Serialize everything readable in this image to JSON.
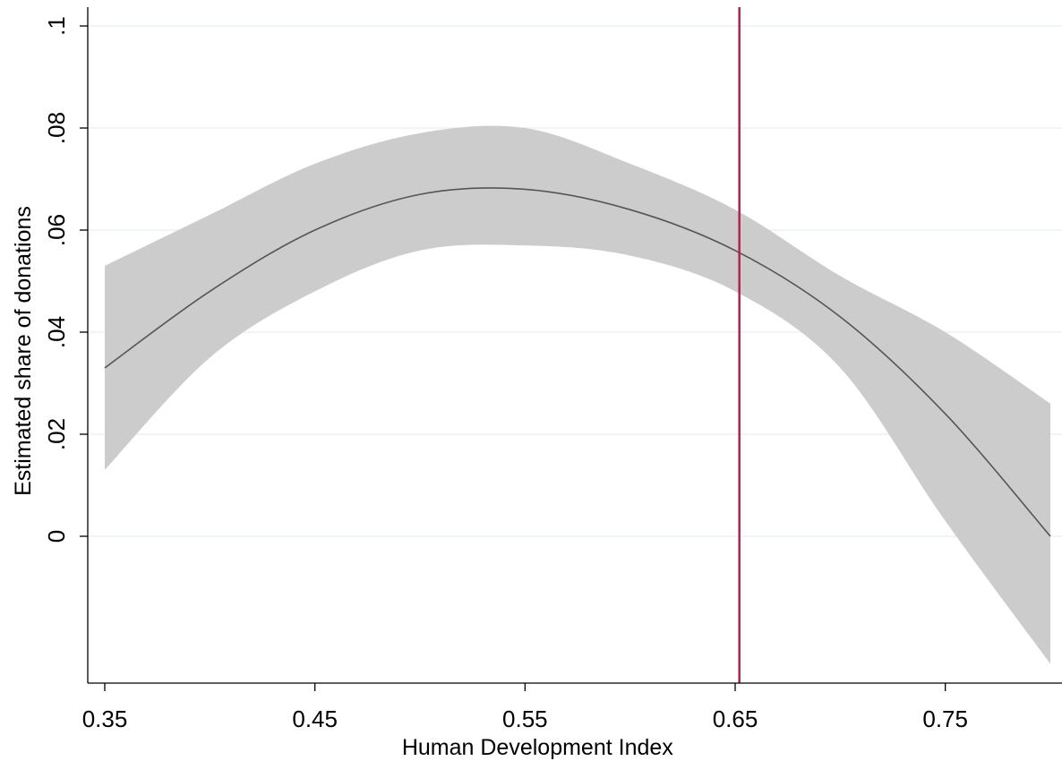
{
  "chart_data": {
    "type": "line",
    "title": "",
    "xlabel": "Human Development Index",
    "ylabel": "Estimated share of donations",
    "xlim": [
      0.35,
      0.8
    ],
    "ylim": [
      -0.028,
      0.1
    ],
    "x_ticks": [
      {
        "value": 0.35,
        "label": "0.35"
      },
      {
        "value": 0.45,
        "label": "0.45"
      },
      {
        "value": 0.55,
        "label": "0.55"
      },
      {
        "value": 0.65,
        "label": "0.65"
      },
      {
        "value": 0.75,
        "label": "0.75"
      }
    ],
    "y_ticks": [
      {
        "value": 0,
        "label": "0"
      },
      {
        "value": 0.02,
        "label": ".02"
      },
      {
        "value": 0.04,
        "label": ".04"
      },
      {
        "value": 0.06,
        "label": ".06"
      },
      {
        "value": 0.08,
        "label": ".08"
      },
      {
        "value": 0.1,
        "label": ".1"
      }
    ],
    "grid": "horizontal",
    "series": [
      {
        "x": [
          0.35,
          0.4,
          0.45,
          0.5,
          0.55,
          0.6,
          0.65,
          0.7,
          0.75,
          0.8
        ],
        "y": [
          0.033,
          0.048,
          0.06,
          0.067,
          0.068,
          0.064,
          0.056,
          0.043,
          0.024,
          0.0
        ],
        "lower": [
          0.013,
          0.035,
          0.048,
          0.056,
          0.057,
          0.055,
          0.048,
          0.033,
          0.003,
          -0.025
        ],
        "upper": [
          0.053,
          0.063,
          0.073,
          0.079,
          0.08,
          0.073,
          0.064,
          0.051,
          0.04,
          0.026
        ],
        "line_color": "#555555",
        "band_color": "#cccccc"
      }
    ],
    "reference_line": {
      "axis": "x",
      "value": 0.652,
      "color": "#b0224b"
    }
  }
}
